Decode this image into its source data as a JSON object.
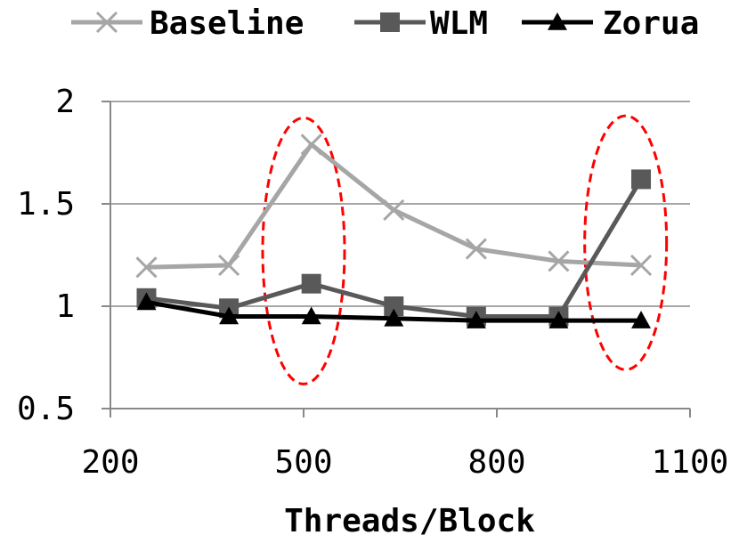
{
  "chart_data": {
    "type": "line",
    "title": "",
    "xlabel": "Threads/Block",
    "ylabel": "",
    "xlim": [
      200,
      1100
    ],
    "ylim": [
      0.5,
      2
    ],
    "xticks": [
      200,
      500,
      800,
      1100
    ],
    "xtick_labels": [
      "200",
      "500",
      "800",
      "1100"
    ],
    "yticks": [
      0.5,
      1,
      1.5,
      2
    ],
    "ytick_labels": [
      "0.5",
      "1",
      "1.5",
      "2"
    ],
    "grid": "horizontal",
    "legend_position": "top",
    "series": [
      {
        "name": "Baseline",
        "color": "#a6a6a6",
        "marker": "x",
        "x": [
          256,
          384,
          512,
          640,
          768,
          896,
          1024
        ],
        "y": [
          1.19,
          1.2,
          1.79,
          1.47,
          1.28,
          1.22,
          1.2
        ]
      },
      {
        "name": "WLM",
        "color": "#595959",
        "marker": "square",
        "x": [
          256,
          384,
          512,
          640,
          768,
          896,
          1024
        ],
        "y": [
          1.04,
          0.99,
          1.11,
          1.0,
          0.95,
          0.95,
          1.62
        ]
      },
      {
        "name": "Zorua",
        "color": "#000000",
        "marker": "triangle",
        "x": [
          256,
          384,
          512,
          640,
          768,
          896,
          1024
        ],
        "y": [
          1.02,
          0.95,
          0.95,
          0.94,
          0.93,
          0.93,
          0.93
        ]
      }
    ],
    "annotations": [
      {
        "type": "dashed-ellipse",
        "color": "#ff0000",
        "x_center": 500,
        "y_range": [
          0.62,
          1.92
        ]
      },
      {
        "type": "dashed-ellipse",
        "color": "#ff0000",
        "x_center": 1000,
        "y_range": [
          0.69,
          1.93
        ]
      }
    ]
  }
}
